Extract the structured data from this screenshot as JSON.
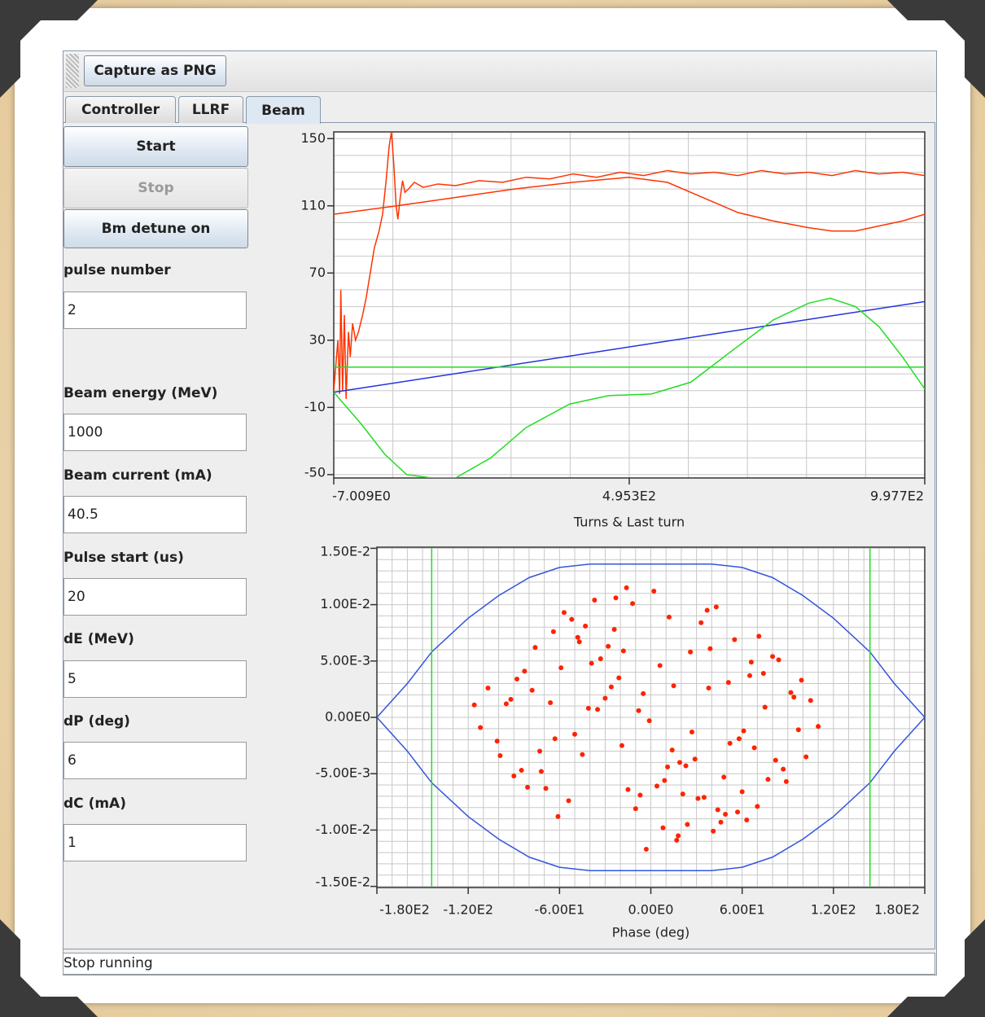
{
  "toolbar": {
    "button": "Capture as PNG"
  },
  "tabs": [
    "Controller",
    "LLRF",
    "Beam"
  ],
  "selected_tab": 2,
  "buttons": [
    {
      "label": "Start",
      "enabled": true
    },
    {
      "label": "Stop",
      "enabled": false
    },
    {
      "label": "Bm detune on",
      "enabled": true
    }
  ],
  "fields": [
    {
      "label": "pulse number",
      "value": "2"
    },
    {
      "label": "Beam energy (MeV)",
      "value": "1000"
    },
    {
      "label": "Beam current (mA)",
      "value": "40.5"
    },
    {
      "label": "Pulse start (us)",
      "value": "20"
    },
    {
      "label": "dE (MeV)",
      "value": "5"
    },
    {
      "label": "dP (deg)",
      "value": "6"
    },
    {
      "label": "dC (mA)",
      "value": "1"
    }
  ],
  "status": "Stop running",
  "chart_data": [
    {
      "type": "line",
      "xlabel": "Turns & Last turn",
      "xlim": [
        -7.009,
        997.7
      ],
      "ylim": [
        -52,
        154
      ],
      "xticks": [
        {
          "value": -7.009,
          "label": "-7.009E0"
        },
        {
          "value": 495.3,
          "label": "4.953E2"
        },
        {
          "value": 997.7,
          "label": "9.977E2"
        }
      ],
      "yticks": [
        -50,
        -10,
        30,
        70,
        110,
        150
      ],
      "xgrid": [
        -7.009,
        93.46,
        193.93,
        294.4,
        394.87,
        495.3,
        595.8,
        696.2,
        796.7,
        897.2,
        997.7
      ],
      "ygrid": [
        -50,
        -40,
        -30,
        -20,
        -10,
        0,
        10,
        20,
        30,
        40,
        50,
        60,
        70,
        80,
        90,
        100,
        110,
        120,
        130,
        140,
        150
      ],
      "series": [
        {
          "color": "#ff3300",
          "x": [
            -7,
            0,
            3,
            5,
            8,
            11,
            14,
            18,
            21,
            25,
            30,
            35,
            42,
            48,
            55,
            62,
            70,
            76,
            82,
            87,
            91,
            95,
            99,
            102,
            106,
            110,
            114,
            120,
            130,
            145,
            170,
            200,
            240,
            280,
            320,
            360,
            400,
            440,
            480,
            520,
            560,
            600,
            640,
            680,
            720,
            760,
            800,
            840,
            880,
            920,
            960,
            997.7
          ],
          "values": [
            0,
            30,
            -2,
            60,
            0,
            45,
            -5,
            35,
            20,
            40,
            30,
            35,
            45,
            55,
            70,
            85,
            95,
            105,
            125,
            145,
            154,
            135,
            110,
            102,
            115,
            125,
            118,
            120,
            124,
            121,
            123,
            122,
            125,
            124,
            127,
            126,
            129,
            127,
            130,
            128,
            131,
            129,
            130,
            128,
            131,
            129,
            130,
            128,
            131,
            129,
            130,
            128
          ]
        },
        {
          "color": "#ff3300",
          "x": [
            -7,
            100,
            200,
            300,
            400,
            495,
            560,
            620,
            680,
            740,
            800,
            840,
            880,
            920,
            960,
            997.7
          ],
          "values": [
            105,
            110,
            115,
            120,
            124,
            127,
            124,
            115,
            106,
            101,
            97,
            95,
            95,
            98,
            101,
            105
          ]
        },
        {
          "color": "#2233dd",
          "x": [
            -7,
            997.7
          ],
          "values": [
            -1,
            53
          ]
        },
        {
          "color": "#22dd22",
          "x": [
            -7,
            997.7
          ],
          "values": [
            14,
            14
          ]
        },
        {
          "color": "#22dd22",
          "x": [
            -7,
            40,
            80,
            117,
            160,
            200,
            260,
            320,
            394,
            460,
            533,
            600,
            671,
            740,
            800,
            837,
            880,
            920,
            960,
            997.7
          ],
          "values": [
            -1,
            -20,
            -38,
            -50,
            -52,
            -52,
            -40,
            -22,
            -8,
            -3,
            -2,
            5,
            24,
            42,
            52,
            55,
            50,
            38,
            20,
            1
          ]
        }
      ]
    },
    {
      "type": "scatter",
      "xlabel": "Phase (deg)",
      "xlim": [
        -180,
        180
      ],
      "ylim": [
        -0.0151,
        0.0151
      ],
      "xticks": [
        {
          "value": -180,
          "label": "-1.80E2"
        },
        {
          "value": -120,
          "label": "-1.20E2"
        },
        {
          "value": -60,
          "label": "-6.00E1"
        },
        {
          "value": 0,
          "label": "0.00E0"
        },
        {
          "value": 60,
          "label": "6.00E1"
        },
        {
          "value": 120,
          "label": "1.20E2"
        },
        {
          "value": 180,
          "label": "1.80E2"
        }
      ],
      "yticks": [
        {
          "value": 0.015,
          "label": "1.50E-2"
        },
        {
          "value": 0.01,
          "label": "1.00E-2"
        },
        {
          "value": 0.005,
          "label": "5.00E-3"
        },
        {
          "value": 0,
          "label": "0.00E0"
        },
        {
          "value": -0.005,
          "label": "-5.00E-3"
        },
        {
          "value": -0.01,
          "label": "-1.00E-2"
        },
        {
          "value": -0.015,
          "label": "-1.50E-2"
        }
      ],
      "xgrid": [
        -180,
        -170,
        -160,
        -150,
        -140,
        -130,
        -120,
        -110,
        -100,
        -90,
        -80,
        -70,
        -60,
        -50,
        -40,
        -30,
        -20,
        -10,
        0,
        10,
        20,
        30,
        40,
        50,
        60,
        70,
        80,
        90,
        100,
        110,
        120,
        130,
        140,
        150,
        160,
        170,
        180
      ],
      "ygrid": [
        -0.015,
        -0.014,
        -0.013,
        -0.012,
        -0.011,
        -0.01,
        -0.009,
        -0.008,
        -0.007,
        -0.006,
        -0.005,
        -0.004,
        -0.003,
        -0.002,
        -0.001,
        0,
        0.001,
        0.002,
        0.003,
        0.004,
        0.005,
        0.006,
        0.007,
        0.008,
        0.009,
        0.01,
        0.011,
        0.012,
        0.013,
        0.014,
        0.015
      ],
      "points": {
        "color": "#ff2200",
        "x": [
          -5,
          23,
          -47,
          61,
          -88,
          12,
          35,
          -19,
          -72,
          94,
          -33,
          8,
          51,
          -64,
          77,
          -101,
          2,
          29,
          -41,
          66,
          -15,
          -83,
          44,
          105,
          -57,
          18,
          -26,
          87,
          -112,
          39,
          -3,
          58,
          -69,
          71,
          -37,
          14,
          -95,
          26,
          49,
          -21,
          82,
          -54,
          6,
          -78,
          97,
          -12,
          33,
          -45,
          63,
          -90,
          21,
          -30,
          74,
          -61,
          11,
          41,
          -107,
          55,
          -8,
          89,
          -24,
          68,
          -50,
          17,
          -76,
          37,
          99,
          -39,
          4,
          -66,
          46,
          -16,
          80,
          -99,
          27,
          -52,
          60,
          -10,
          92,
          -35,
          15,
          -85,
          52,
          -28,
          70,
          -59,
          9,
          43,
          -116,
          31,
          -1,
          84,
          -43,
          65,
          -73,
          24,
          -18,
          110,
          -63,
          38,
          -92,
          48,
          -7,
          75,
          -48,
          19,
          -81,
          57,
          -23,
          102
        ],
        "values": [
          0.0021,
          -0.0043,
          0.0067,
          -0.0012,
          0.0034,
          0.0089,
          -0.0071,
          -0.0025,
          -0.0048,
          0.0018,
          0.0052,
          -0.0098,
          0.0031,
          0.0076,
          -0.0055,
          -0.0021,
          0.0112,
          -0.0037,
          0.0008,
          0.0049,
          -0.0064,
          0.0041,
          -0.0082,
          0.0015,
          0.0093,
          -0.0105,
          0.0027,
          -0.0046,
          -0.0009,
          0.0061,
          -0.0117,
          -0.0019,
          -0.0063,
          0.0072,
          0.0104,
          -0.0029,
          0.0012,
          0.0058,
          -0.0086,
          0.0035,
          -0.0038,
          -0.0074,
          0.0046,
          0.0024,
          -0.0011,
          0.0101,
          0.0084,
          -0.0033,
          -0.0091,
          -0.0052,
          -0.0068,
          0.0017,
          0.0039,
          -0.0088,
          -0.0044,
          -0.0101,
          0.0026,
          0.0069,
          0.0006,
          -0.0057,
          0.0078,
          -0.0027,
          -0.0015,
          -0.0109,
          0.0062,
          0.0095,
          0.0033,
          0.0048,
          -0.0061,
          0.0013,
          -0.0093,
          0.0115,
          0.0054,
          -0.0034,
          -0.0013,
          0.0087,
          -0.0066,
          -0.0081,
          0.0022,
          0.0007,
          0.0028,
          -0.0047,
          -0.0023,
          0.0063,
          -0.0079,
          0.0044,
          -0.0056,
          0.0098,
          0.0011,
          -0.0072,
          -0.0003,
          0.0051,
          0.0081,
          0.0037,
          -0.003,
          -0.0095,
          0.0059,
          -0.0008,
          -0.0019,
          0.0026,
          0.0016,
          -0.0053,
          -0.0069,
          0.0009,
          0.0071,
          -0.004,
          -0.0062,
          -0.0084,
          0.0106,
          -0.0035
        ]
      },
      "series": [
        {
          "color": "#3355dd",
          "x": [
            -180,
            -160,
            -144,
            -120,
            -100,
            -80,
            -60,
            -40,
            0,
            40,
            60,
            80,
            100,
            120,
            144,
            160,
            180
          ],
          "values": [
            0,
            0.003,
            0.0058,
            0.0088,
            0.0108,
            0.0124,
            0.0133,
            0.0136,
            0.0136,
            0.0136,
            0.0133,
            0.0124,
            0.0108,
            0.0088,
            0.0058,
            0.003,
            0
          ]
        },
        {
          "color": "#3355dd",
          "x": [
            -180,
            -160,
            -144,
            -120,
            -100,
            -80,
            -60,
            -40,
            0,
            40,
            60,
            80,
            100,
            120,
            144,
            160,
            180
          ],
          "values": [
            0,
            -0.003,
            -0.0058,
            -0.0088,
            -0.0108,
            -0.0124,
            -0.0133,
            -0.0136,
            -0.0136,
            -0.0136,
            -0.0133,
            -0.0124,
            -0.0108,
            -0.0088,
            -0.0058,
            -0.003,
            0
          ]
        },
        {
          "color": "#22dd22",
          "x": [
            -144,
            -144
          ],
          "values": [
            -0.015,
            0.015
          ]
        },
        {
          "color": "#22dd22",
          "x": [
            144,
            144
          ],
          "values": [
            -0.015,
            0.015
          ]
        }
      ]
    }
  ]
}
